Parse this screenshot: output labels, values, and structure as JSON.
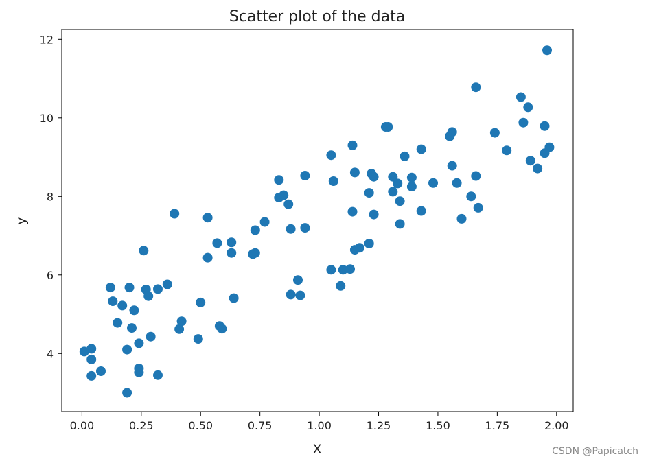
{
  "chart_data": {
    "type": "scatter",
    "title": "Scatter plot of the data",
    "xlabel": "X",
    "ylabel": "y",
    "xlim": [
      -0.085,
      2.07
    ],
    "ylim": [
      2.52,
      12.25
    ],
    "xticks": [
      0.0,
      0.25,
      0.5,
      0.75,
      1.0,
      1.25,
      1.5,
      1.75,
      2.0
    ],
    "xtick_labels": [
      "0.00",
      "0.25",
      "0.50",
      "0.75",
      "1.00",
      "1.25",
      "1.50",
      "1.75",
      "2.00"
    ],
    "yticks": [
      4,
      6,
      8,
      10,
      12
    ],
    "ytick_labels": [
      "4",
      "6",
      "8",
      "10",
      "12"
    ],
    "marker_color": "#1f77b4",
    "grid": false,
    "series": [
      {
        "points": [
          [
            0.01,
            4.05
          ],
          [
            0.04,
            4.12
          ],
          [
            0.04,
            3.85
          ],
          [
            0.04,
            3.43
          ],
          [
            0.08,
            3.55
          ],
          [
            0.12,
            5.68
          ],
          [
            0.13,
            5.33
          ],
          [
            0.15,
            4.78
          ],
          [
            0.17,
            5.22
          ],
          [
            0.19,
            3.0
          ],
          [
            0.19,
            4.1
          ],
          [
            0.2,
            5.68
          ],
          [
            0.21,
            4.65
          ],
          [
            0.22,
            5.1
          ],
          [
            0.24,
            4.26
          ],
          [
            0.24,
            3.62
          ],
          [
            0.24,
            3.52
          ],
          [
            0.26,
            6.62
          ],
          [
            0.27,
            5.63
          ],
          [
            0.28,
            5.46
          ],
          [
            0.29,
            4.43
          ],
          [
            0.32,
            3.45
          ],
          [
            0.32,
            5.64
          ],
          [
            0.36,
            5.76
          ],
          [
            0.39,
            7.56
          ],
          [
            0.41,
            4.62
          ],
          [
            0.42,
            4.82
          ],
          [
            0.49,
            4.37
          ],
          [
            0.5,
            5.3
          ],
          [
            0.53,
            6.44
          ],
          [
            0.53,
            7.46
          ],
          [
            0.57,
            6.81
          ],
          [
            0.58,
            4.7
          ],
          [
            0.59,
            4.63
          ],
          [
            0.63,
            6.56
          ],
          [
            0.63,
            6.83
          ],
          [
            0.64,
            5.41
          ],
          [
            0.72,
            6.53
          ],
          [
            0.73,
            6.56
          ],
          [
            0.73,
            7.14
          ],
          [
            0.77,
            7.35
          ],
          [
            0.83,
            8.42
          ],
          [
            0.83,
            7.97
          ],
          [
            0.85,
            8.03
          ],
          [
            0.87,
            7.8
          ],
          [
            0.88,
            7.17
          ],
          [
            0.88,
            5.5
          ],
          [
            0.91,
            5.87
          ],
          [
            0.92,
            5.48
          ],
          [
            0.94,
            7.2
          ],
          [
            0.94,
            8.53
          ],
          [
            1.05,
            9.05
          ],
          [
            1.05,
            6.13
          ],
          [
            1.06,
            8.39
          ],
          [
            1.09,
            5.72
          ],
          [
            1.1,
            6.13
          ],
          [
            1.13,
            6.15
          ],
          [
            1.14,
            9.3
          ],
          [
            1.14,
            7.61
          ],
          [
            1.15,
            6.64
          ],
          [
            1.15,
            8.61
          ],
          [
            1.17,
            6.69
          ],
          [
            1.21,
            6.8
          ],
          [
            1.21,
            8.09
          ],
          [
            1.22,
            8.58
          ],
          [
            1.23,
            8.5
          ],
          [
            1.23,
            7.54
          ],
          [
            1.28,
            9.77
          ],
          [
            1.29,
            9.77
          ],
          [
            1.31,
            8.5
          ],
          [
            1.31,
            8.12
          ],
          [
            1.33,
            8.33
          ],
          [
            1.34,
            7.3
          ],
          [
            1.34,
            7.88
          ],
          [
            1.36,
            9.02
          ],
          [
            1.39,
            8.25
          ],
          [
            1.39,
            8.48
          ],
          [
            1.43,
            9.2
          ],
          [
            1.43,
            7.63
          ],
          [
            1.48,
            8.34
          ],
          [
            1.55,
            9.53
          ],
          [
            1.56,
            9.64
          ],
          [
            1.56,
            8.78
          ],
          [
            1.58,
            8.34
          ],
          [
            1.6,
            7.43
          ],
          [
            1.64,
            8.0
          ],
          [
            1.66,
            8.52
          ],
          [
            1.66,
            10.78
          ],
          [
            1.67,
            7.71
          ],
          [
            1.74,
            9.62
          ],
          [
            1.79,
            9.17
          ],
          [
            1.85,
            10.53
          ],
          [
            1.86,
            9.88
          ],
          [
            1.88,
            10.27
          ],
          [
            1.89,
            8.91
          ],
          [
            1.92,
            8.71
          ],
          [
            1.95,
            9.1
          ],
          [
            1.95,
            9.79
          ],
          [
            1.96,
            11.72
          ],
          [
            1.97,
            9.25
          ]
        ]
      }
    ]
  },
  "watermark": "CSDN @Papicatch"
}
